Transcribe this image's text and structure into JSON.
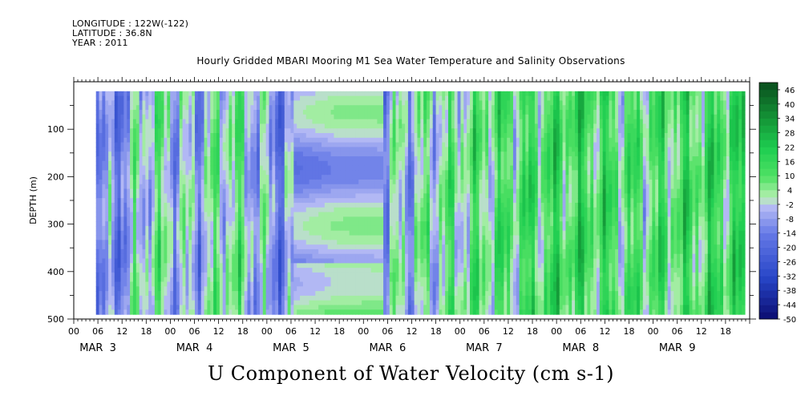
{
  "header": {
    "longitude": "LONGITUDE : 122W(-122)",
    "latitude": "LATITUDE : 36.8N",
    "year": "YEAR : 2011"
  },
  "chart_data": {
    "type": "heatmap",
    "title": "Hourly Gridded MBARI Mooring M1 Sea Water Temperature and Salinity Observations",
    "xlabel": "U Component of Water Velocity (cm s-1)",
    "ylabel": "DEPTH (m)",
    "ylim": [
      500,
      0
    ],
    "y_ticks": [
      100,
      200,
      300,
      400,
      500
    ],
    "hour_tick_labels": [
      "00",
      "06",
      "12",
      "18"
    ],
    "day_labels": [
      "MAR 3",
      "MAR 4",
      "MAR 5",
      "MAR 6",
      "MAR 7",
      "MAR 8",
      "MAR 9"
    ],
    "x_range_days": [
      0,
      7
    ],
    "data_extent": {
      "start_day": 0.23,
      "end_day": 6.95,
      "depth_top": 20,
      "depth_bottom": 490
    },
    "colorbar": {
      "labels": [
        "46",
        "40",
        "34",
        "28",
        "22",
        "16",
        "10",
        "4",
        "-2",
        "-8",
        "-14",
        "-20",
        "-26",
        "-32",
        "-38",
        "-44",
        "-50"
      ],
      "min": -50,
      "max": 49,
      "step": 3
    },
    "notes_structure": {
      "interpolated_gap_days": [
        2.25,
        3.2
      ],
      "regime_by_day": [
        {
          "day": 0.4,
          "mean": -12
        },
        {
          "day": 0.8,
          "mean": 4
        },
        {
          "day": 1.2,
          "mean": -6
        },
        {
          "day": 1.6,
          "mean": 6
        },
        {
          "day": 2.1,
          "mean": -10
        },
        {
          "day": 2.7,
          "mean": -4
        },
        {
          "day": 3.4,
          "mean": -3
        },
        {
          "day": 3.8,
          "mean": 4
        },
        {
          "day": 4.3,
          "mean": 8
        },
        {
          "day": 4.8,
          "mean": 12
        },
        {
          "day": 5.3,
          "mean": 14
        },
        {
          "day": 5.8,
          "mean": 8
        },
        {
          "day": 6.3,
          "mean": 12
        },
        {
          "day": 6.8,
          "mean": 14
        }
      ]
    }
  }
}
